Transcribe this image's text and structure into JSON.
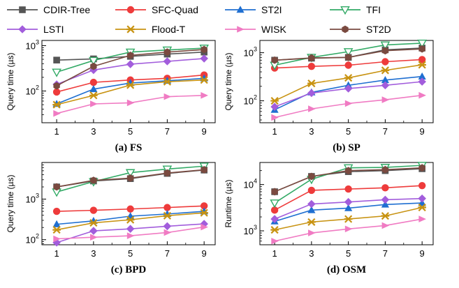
{
  "chart_data": {
    "type": "line",
    "legend": {
      "placement": "top",
      "entries": [
        {
          "name": "CDIR-Tree",
          "color": "#555555",
          "marker": "square"
        },
        {
          "name": "SFC-Quad",
          "color": "#ee3b3b",
          "marker": "circle"
        },
        {
          "name": "ST2I",
          "color": "#1f6fd1",
          "marker": "triangle-up"
        },
        {
          "name": "TFI",
          "color": "#33aa66",
          "marker": "triangle-down-open"
        },
        {
          "name": "LSTI",
          "color": "#a25ddc",
          "marker": "diamond"
        },
        {
          "name": "Flood-T",
          "color": "#c89312",
          "marker": "x-star"
        },
        {
          "name": "WISK",
          "color": "#f07bc3",
          "marker": "triangle-right"
        },
        {
          "name": "ST2D",
          "color": "#7a4a40",
          "marker": "hexagon"
        }
      ]
    },
    "panels": [
      {
        "caption": "(a) FS",
        "ylabel": "Query time (µs)",
        "yscale": "log",
        "ylim": [
          20,
          1300
        ],
        "yticks": [
          {
            "value": 100,
            "base": "10",
            "exp": "2"
          },
          {
            "value": 1000,
            "base": "10",
            "exp": "3"
          }
        ],
        "x": [
          1,
          3,
          5,
          7,
          9
        ],
        "xlim": [
          0.2,
          9.6
        ],
        "series": [
          {
            "name": "CDIR-Tree",
            "values": [
              480,
              510,
              580,
              650,
              720
            ]
          },
          {
            "name": "SFC-Quad",
            "values": [
              95,
              155,
              175,
              190,
              225
            ]
          },
          {
            "name": "ST2I",
            "values": [
              52,
              110,
              150,
              168,
              190
            ]
          },
          {
            "name": "TFI",
            "values": [
              260,
              470,
              720,
              800,
              880
            ]
          },
          {
            "name": "LSTI",
            "values": [
              140,
              290,
              390,
              450,
              520
            ]
          },
          {
            "name": "Flood-T",
            "values": [
              50,
              80,
              135,
              160,
              175
            ]
          },
          {
            "name": "WISK",
            "values": [
              32,
              52,
              55,
              75,
              80
            ]
          },
          {
            "name": "ST2D",
            "values": [
              130,
              350,
              610,
              720,
              820
            ]
          }
        ]
      },
      {
        "caption": "(b) SP",
        "ylabel": "Query time (µs)",
        "yscale": "log",
        "ylim": [
          35,
          1800
        ],
        "yticks": [
          {
            "value": 100,
            "base": "10",
            "exp": "2"
          },
          {
            "value": 1000,
            "base": "10",
            "exp": "3"
          }
        ],
        "x": [
          1,
          3,
          5,
          7,
          9
        ],
        "xlim": [
          0.2,
          9.6
        ],
        "series": [
          {
            "name": "CDIR-Tree",
            "values": [
              700,
              770,
              800,
              1150,
              1250
            ]
          },
          {
            "name": "SFC-Quad",
            "values": [
              480,
              520,
              550,
              650,
              720
            ]
          },
          {
            "name": "ST2I",
            "values": [
              65,
              150,
              210,
              270,
              320
            ]
          },
          {
            "name": "TFI",
            "values": [
              550,
              800,
              1050,
              1450,
              1580
            ]
          },
          {
            "name": "LSTI",
            "values": [
              75,
              145,
              180,
              210,
              250
            ]
          },
          {
            "name": "Flood-T",
            "values": [
              100,
              230,
              300,
              430,
              560
            ]
          },
          {
            "name": "WISK",
            "values": [
              45,
              68,
              88,
              105,
              130
            ]
          },
          {
            "name": "ST2D",
            "values": [
              700,
              780,
              800,
              1100,
              1200
            ]
          }
        ]
      },
      {
        "caption": "(c) BPD",
        "ylabel": "Query time (µs)",
        "yscale": "log",
        "ylim": [
          75,
          8000
        ],
        "yticks": [
          {
            "value": 100,
            "base": "10",
            "exp": "2"
          },
          {
            "value": 1000,
            "base": "10",
            "exp": "3"
          }
        ],
        "x": [
          1,
          3,
          5,
          7,
          9
        ],
        "xlim": [
          0.2,
          9.6
        ],
        "series": [
          {
            "name": "CDIR-Tree",
            "values": [
              2000,
              2800,
              3200,
              4300,
              5200
            ]
          },
          {
            "name": "SFC-Quad",
            "values": [
              500,
              530,
              570,
              620,
              680
            ]
          },
          {
            "name": "ST2I",
            "values": [
              240,
              290,
              380,
              430,
              500
            ]
          },
          {
            "name": "TFI",
            "values": [
              1500,
              2700,
              4500,
              5500,
              6500
            ]
          },
          {
            "name": "LSTI",
            "values": [
              85,
              165,
              185,
              215,
              245
            ]
          },
          {
            "name": "Flood-T",
            "values": [
              175,
              260,
              310,
              390,
              460
            ]
          },
          {
            "name": "WISK",
            "values": [
              105,
              115,
              125,
              150,
              205
            ]
          },
          {
            "name": "ST2D",
            "values": [
              2000,
              2900,
              3300,
              4400,
              5300
            ]
          }
        ]
      },
      {
        "caption": "(d) OSM",
        "ylabel": "Runtime (µs)",
        "yscale": "log",
        "ylim": [
          500,
          30000
        ],
        "yticks": [
          {
            "value": 1000,
            "base": "10",
            "exp": "3"
          },
          {
            "value": 10000,
            "base": "10",
            "exp": "4"
          }
        ],
        "x": [
          1,
          3,
          5,
          7,
          9
        ],
        "xlim": [
          0.2,
          9.6
        ],
        "series": [
          {
            "name": "CDIR-Tree",
            "values": [
              7000,
              15000,
              19000,
              20000,
              22000
            ]
          },
          {
            "name": "SFC-Quad",
            "values": [
              2800,
              7500,
              8000,
              8500,
              9500
            ]
          },
          {
            "name": "ST2I",
            "values": [
              1600,
              2800,
              3100,
              3700,
              4000
            ]
          },
          {
            "name": "TFI",
            "values": [
              4000,
              13000,
              23000,
              23500,
              26000
            ]
          },
          {
            "name": "LSTI",
            "values": [
              1800,
              3800,
              4200,
              4700,
              5000
            ]
          },
          {
            "name": "Flood-T",
            "values": [
              1050,
              1550,
              1800,
              2100,
              3200
            ]
          },
          {
            "name": "WISK",
            "values": [
              600,
              900,
              1100,
              1300,
              1800
            ]
          },
          {
            "name": "ST2D",
            "values": [
              7000,
              15000,
              20000,
              21000,
              23000
            ]
          }
        ]
      }
    ]
  }
}
